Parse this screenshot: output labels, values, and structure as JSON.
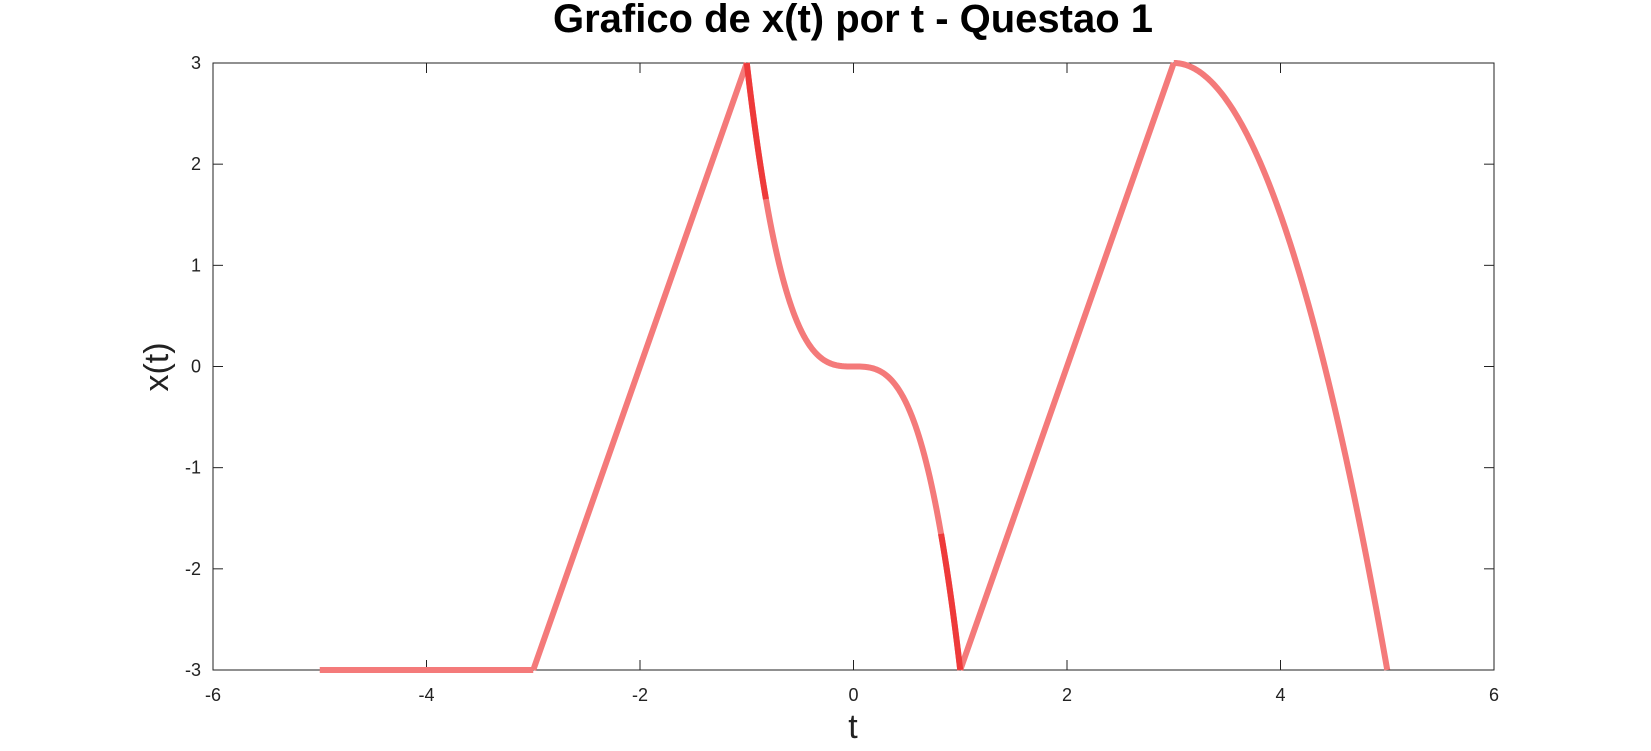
{
  "chart_data": {
    "type": "line",
    "title": "Grafico de x(t) por t - Questao 1",
    "xlabel": "t",
    "ylabel": "x(t)",
    "xlim": [
      -6,
      6
    ],
    "ylim": [
      -3,
      3
    ],
    "xticks": [
      "-6",
      "-4",
      "-2",
      "0",
      "2",
      "4",
      "6"
    ],
    "yticks": [
      "-3",
      "-2",
      "-1",
      "0",
      "1",
      "2",
      "3"
    ],
    "grid": false,
    "line_color": "#f47a7a",
    "overlap_color": "#ee3a3a",
    "segments": [
      {
        "x": [
          -5,
          -3
        ],
        "y": [
          -3,
          -3
        ],
        "kind": "linear"
      },
      {
        "x": [
          -3,
          -1
        ],
        "y": [
          -3,
          3
        ],
        "kind": "linear"
      },
      {
        "x": [
          -1,
          1
        ],
        "y": [
          3,
          -3
        ],
        "kind": "cubic",
        "formula": "-3*t^3"
      },
      {
        "x": [
          1,
          3
        ],
        "y": [
          -3,
          3
        ],
        "kind": "linear"
      },
      {
        "x": [
          3,
          5
        ],
        "y": [
          3,
          -3
        ],
        "kind": "quadratic",
        "formula": "3 - 1.5*(t-3)^2"
      }
    ],
    "overlap_segments": [
      {
        "x": [
          -1,
          -0.82
        ],
        "y": [
          3,
          1.65
        ]
      },
      {
        "x": [
          0.82,
          1
        ],
        "y": [
          -1.65,
          -3
        ]
      }
    ]
  }
}
